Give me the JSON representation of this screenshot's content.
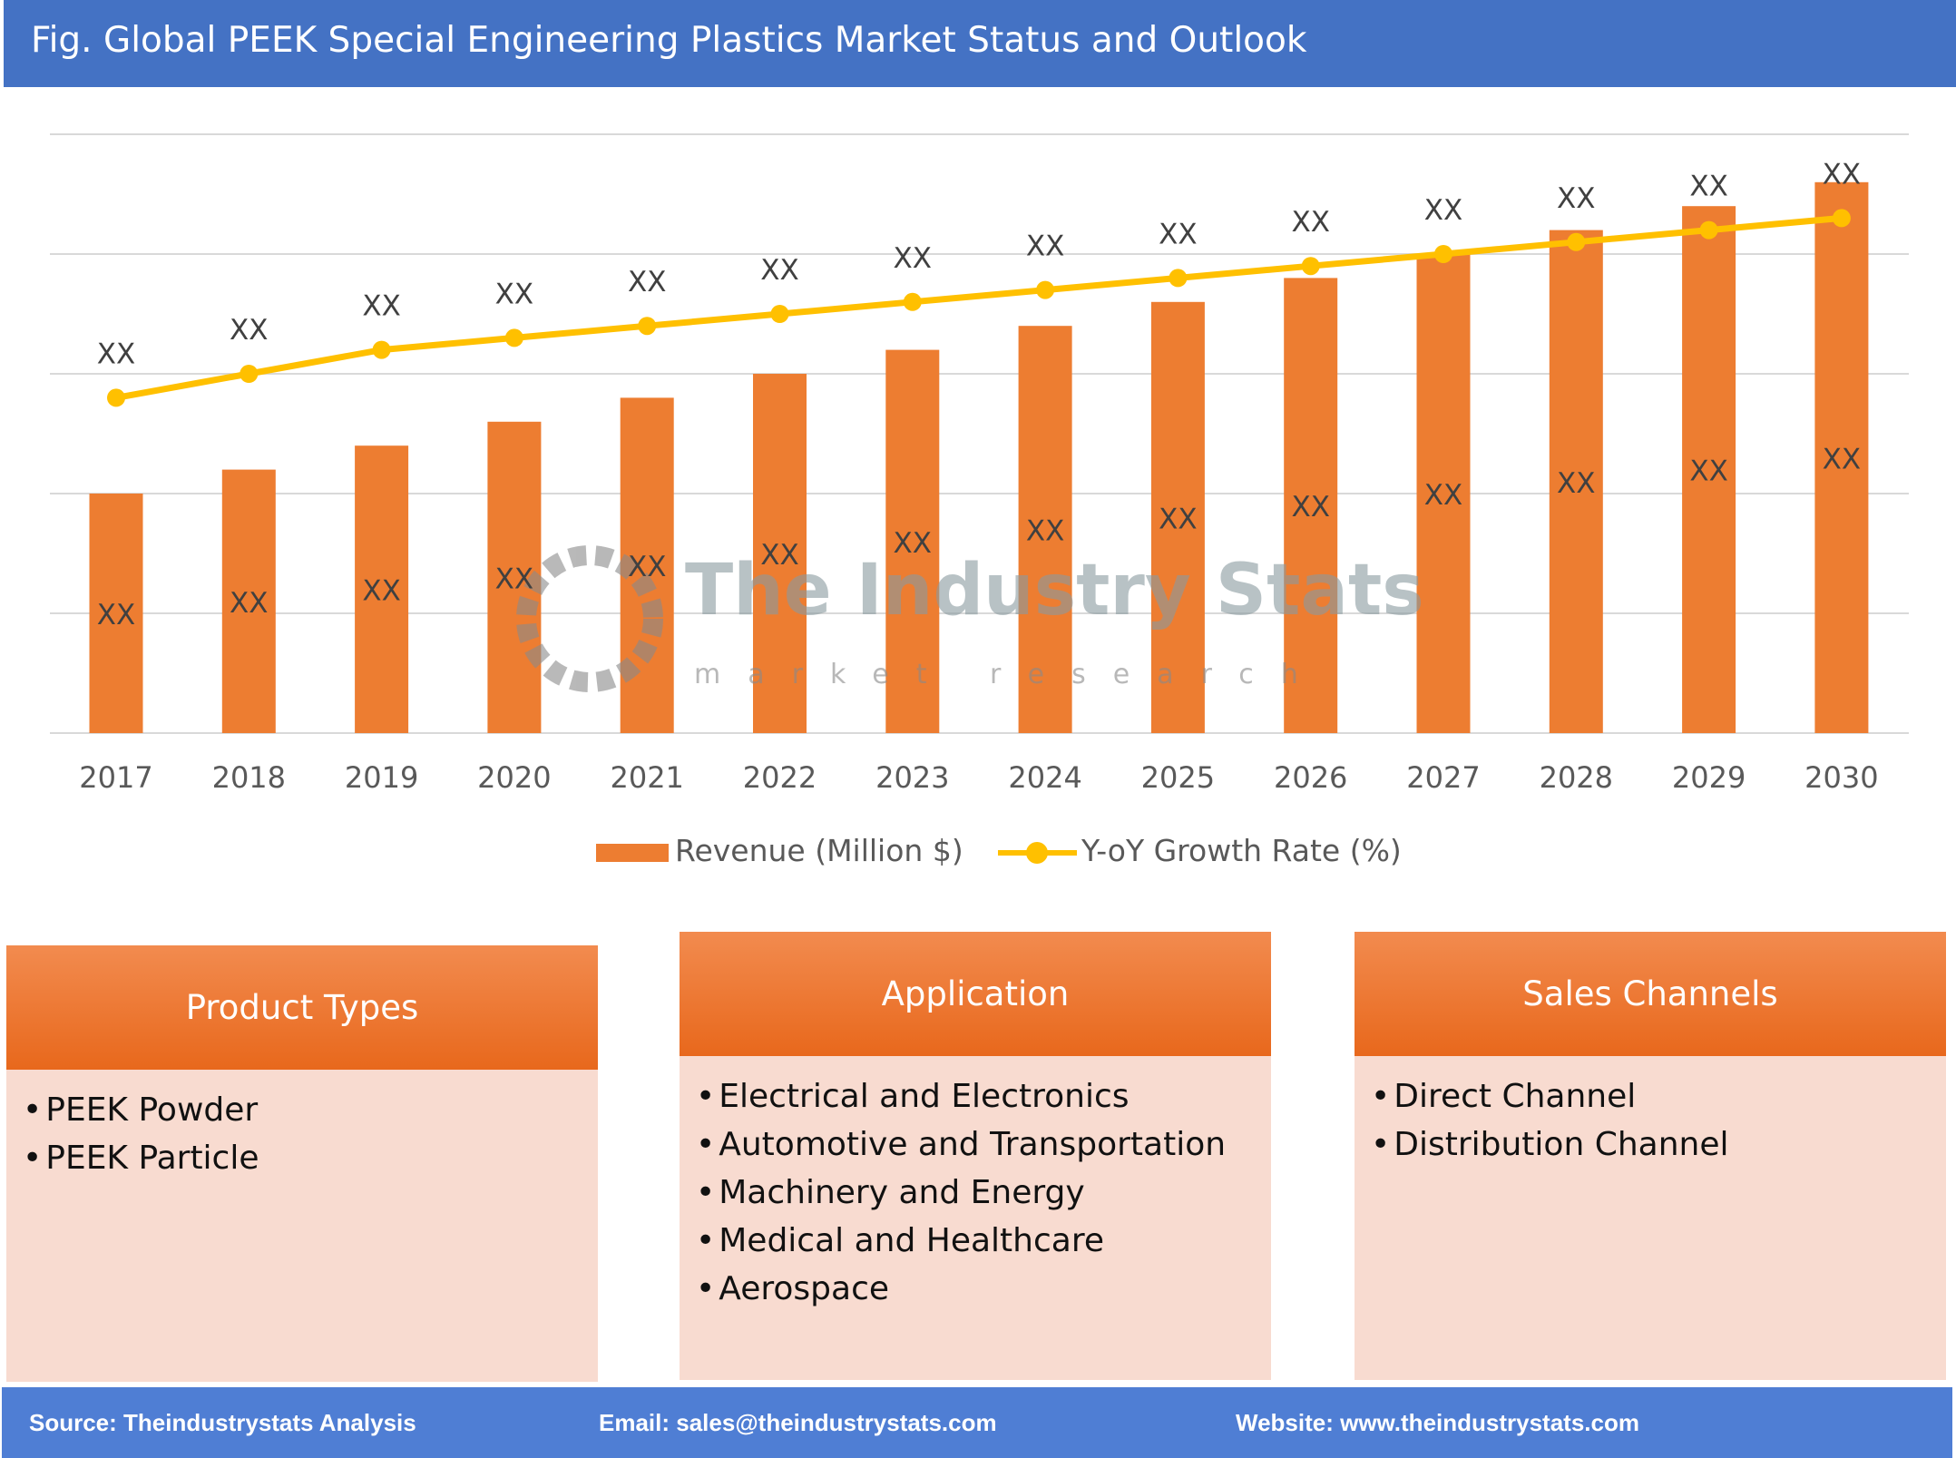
{
  "title": "Fig. Global PEEK Special Engineering Plastics Market Status and Outlook",
  "watermark": {
    "name": "The Industry Stats",
    "tagline": "market research"
  },
  "chart_data": {
    "type": "bar+line",
    "categories": [
      "2017",
      "2018",
      "2019",
      "2020",
      "2021",
      "2022",
      "2023",
      "2024",
      "2025",
      "2026",
      "2027",
      "2028",
      "2029",
      "2030"
    ],
    "series": [
      {
        "name": "Revenue (Million $)",
        "type": "bar",
        "color": "#ed7d31",
        "values": [
          2.0,
          2.2,
          2.4,
          2.6,
          2.8,
          3.0,
          3.2,
          3.4,
          3.6,
          3.8,
          4.0,
          4.2,
          4.4,
          4.6
        ],
        "labels": [
          "XX",
          "XX",
          "XX",
          "XX",
          "XX",
          "XX",
          "XX",
          "XX",
          "XX",
          "XX",
          "XX",
          "XX",
          "XX",
          "XX"
        ]
      },
      {
        "name": "Y-oY Growth Rate (%)",
        "type": "line",
        "color": "#ffc000",
        "values": [
          2.8,
          3.0,
          3.2,
          3.3,
          3.4,
          3.5,
          3.6,
          3.7,
          3.8,
          3.9,
          4.0,
          4.1,
          4.2,
          4.3
        ],
        "labels": [
          "XX",
          "XX",
          "XX",
          "XX",
          "XX",
          "XX",
          "XX",
          "XX",
          "XX",
          "XX",
          "XX",
          "XX",
          "XX",
          "XX"
        ]
      }
    ],
    "ylim": [
      0,
      5
    ],
    "grid": true,
    "y_tick_labels_shown": false,
    "legend_position": "bottom"
  },
  "panels": [
    {
      "title": "Product Types",
      "items": [
        "PEEK Powder",
        "PEEK Particle"
      ]
    },
    {
      "title": "Application",
      "items": [
        "Electrical and Electronics",
        "Automotive and Transportation",
        "Machinery and Energy",
        "Medical and Healthcare",
        "Aerospace"
      ]
    },
    {
      "title": "Sales Channels",
      "items": [
        "Direct Channel",
        "Distribution Channel"
      ]
    }
  ],
  "footer": {
    "source": "Source: Theindustrystats Analysis",
    "email": "Email: sales@theindustrystats.com",
    "website": "Website: www.theindustrystats.com"
  }
}
